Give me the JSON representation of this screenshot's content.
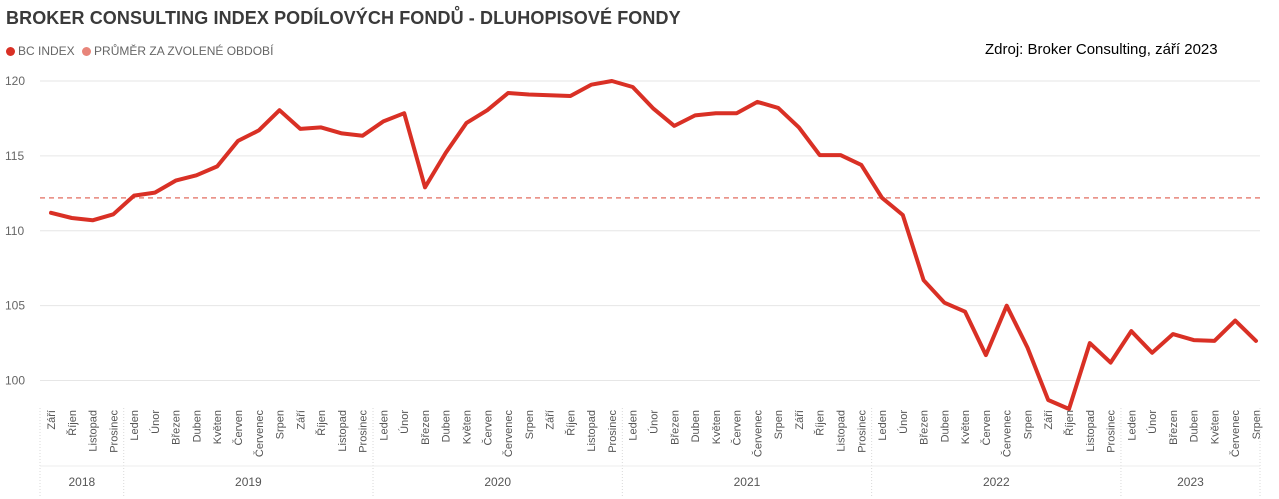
{
  "chart_data": {
    "type": "line",
    "title": "BROKER CONSULTING INDEX PODÍLOVÝCH FONDŮ - DLUHOPISOVÉ FONDY",
    "source": "Zdroj: Broker Consulting, září 2023",
    "legend_position": "top-left",
    "grid": "horizontal",
    "ylim": [
      97.5,
      121
    ],
    "yticks": [
      100,
      105,
      110,
      115,
      120
    ],
    "months": [
      "Září",
      "Říjen",
      "Listopad",
      "Prosinec",
      "Leden",
      "Únor",
      "Březen",
      "Duben",
      "Květen",
      "Červen",
      "Červenec",
      "Srpen",
      "Září",
      "Říjen",
      "Listopad",
      "Prosinec",
      "Leden",
      "Únor",
      "Březen",
      "Duben",
      "Květen",
      "Červen",
      "Červenec",
      "Srpen",
      "Září",
      "Říjen",
      "Listopad",
      "Prosinec",
      "Leden",
      "Únor",
      "Březen",
      "Duben",
      "Květen",
      "Červen",
      "Červenec",
      "Srpen",
      "Září",
      "Říjen",
      "Listopad",
      "Prosinec",
      "Leden",
      "Únor",
      "Březen",
      "Duben",
      "Květen",
      "Červen",
      "Červenec",
      "Srpen",
      "Září",
      "Říjen",
      "Listopad",
      "Prosinec",
      "Leden",
      "Únor",
      "Březen",
      "Duben",
      "Květen",
      "Červenec",
      "Srpen"
    ],
    "years": [
      {
        "label": "2018",
        "count": 4
      },
      {
        "label": "2019",
        "count": 12
      },
      {
        "label": "2020",
        "count": 12
      },
      {
        "label": "2021",
        "count": 12
      },
      {
        "label": "2022",
        "count": 12
      },
      {
        "label": "2023",
        "count": 7
      }
    ],
    "series": [
      {
        "name": "BC INDEX",
        "color": "#d93025",
        "values": [
          111.2,
          110.85,
          110.7,
          111.1,
          112.35,
          112.55,
          113.35,
          113.7,
          114.3,
          116.0,
          116.7,
          118.05,
          116.8,
          116.9,
          116.5,
          116.35,
          117.3,
          117.85,
          112.9,
          115.2,
          117.2,
          118.05,
          119.2,
          119.1,
          119.05,
          119.0,
          119.75,
          120.0,
          119.6,
          118.15,
          117.0,
          117.7,
          117.85,
          117.85,
          118.6,
          118.2,
          116.9,
          115.05,
          115.05,
          114.4,
          112.2,
          111.05,
          106.7,
          105.2,
          104.6,
          101.7,
          105.0,
          102.2,
          98.7,
          98.1,
          102.5,
          101.2,
          103.3,
          101.85,
          103.1,
          102.7,
          102.65,
          104.0,
          102.65
        ]
      },
      {
        "name": "PRŮMĚR ZA ZVOLENÉ OBDOBÍ",
        "color": "#e8857a",
        "style": "dashed",
        "value": 112.2
      }
    ]
  }
}
